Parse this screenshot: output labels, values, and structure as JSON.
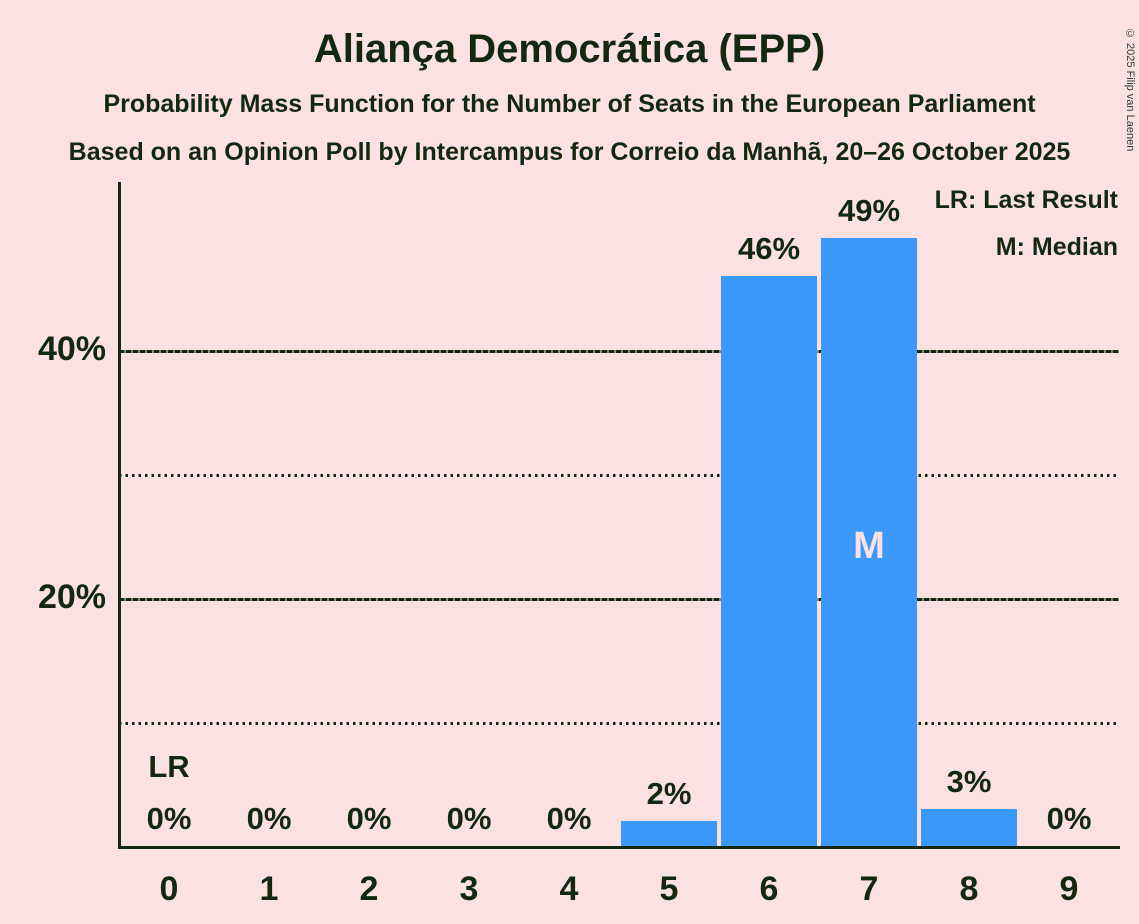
{
  "header": {
    "title": "Aliança Democrática (EPP)",
    "subtitle1": "Probability Mass Function for the Number of Seats in the European Parliament",
    "subtitle2": "Based on an Opinion Poll by Intercampus for Correio da Manhã, 20–26 October 2025"
  },
  "copyright": "© 2025 Filip van Laenen",
  "legend": {
    "lr": "LR: Last Result",
    "m": "M: Median"
  },
  "colors": {
    "background": "#fbe1e1",
    "bar": "#3a99fa",
    "text": "#12290f"
  },
  "chart_data": {
    "type": "bar",
    "title": "Aliança Democrática (EPP)",
    "categories": [
      "0",
      "1",
      "2",
      "3",
      "4",
      "5",
      "6",
      "7",
      "8",
      "9"
    ],
    "values": [
      0,
      0,
      0,
      0,
      0,
      2,
      46,
      49,
      3,
      0
    ],
    "bar_labels": [
      "0%",
      "0%",
      "0%",
      "0%",
      "0%",
      "2%",
      "46%",
      "49%",
      "3%",
      "0%"
    ],
    "xlabel": "",
    "ylabel": "",
    "ylim": [
      0,
      54
    ],
    "yticks": [
      {
        "value": 20,
        "label": "20%"
      },
      {
        "value": 40,
        "label": "40%"
      }
    ],
    "solid_gridlines": [
      20,
      40
    ],
    "dotted_gridlines": [
      10,
      30
    ],
    "grid": "horizontal",
    "legend_position": "top-right",
    "last_result_marker": "LR",
    "last_result_category": "0",
    "median_marker": "M",
    "median_category": "7"
  }
}
